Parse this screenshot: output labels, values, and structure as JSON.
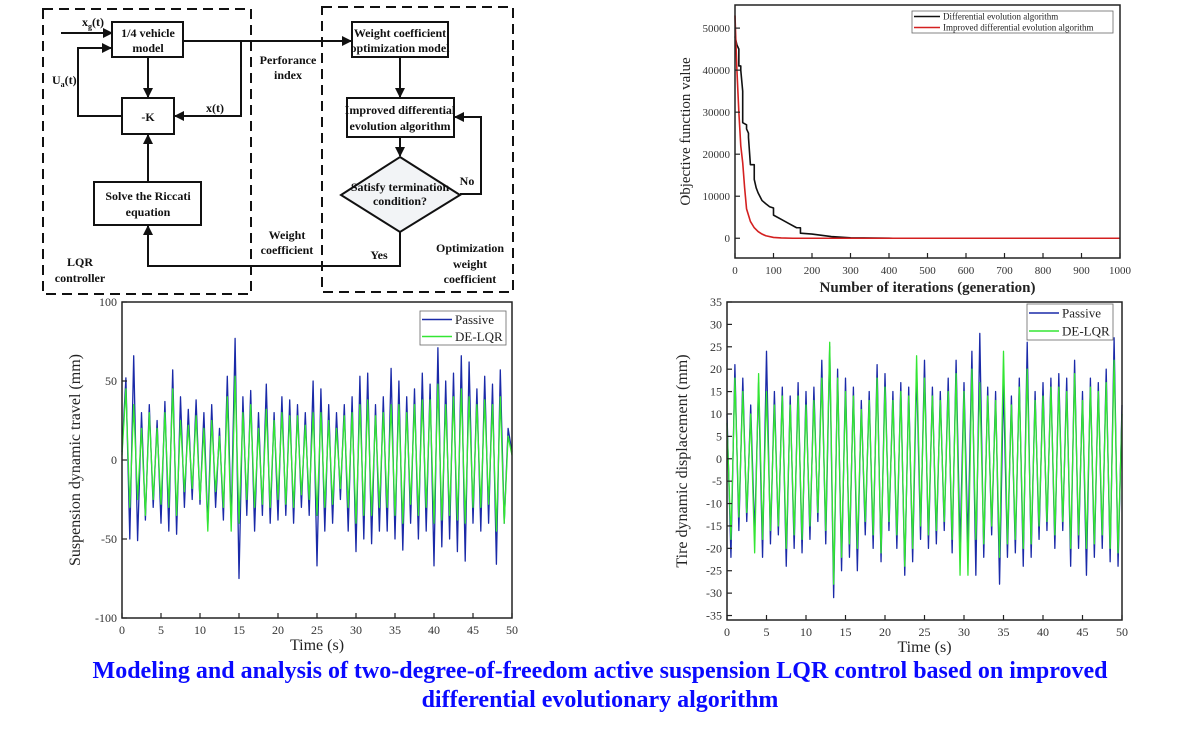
{
  "title": {
    "line1": "Modeling and analysis of two-degree-of-freedom active suspension LQR control based on improved",
    "line2": "differential evolutionary algorithm"
  },
  "diagram": {
    "input_label": {
      "base": "x",
      "sub": "g",
      "suffix": "(t)"
    },
    "control_label": {
      "base": "U",
      "sub": "a",
      "suffix": "(t)"
    },
    "state_label": "x(t)",
    "vehicle_model": [
      "1/4 vehicle",
      "model"
    ],
    "gain": "-K",
    "riccati": [
      "Solve the Riccati",
      "equation"
    ],
    "performance_index": [
      "Perforance",
      "index"
    ],
    "weight_coefficient": [
      "Weight",
      "coefficient"
    ],
    "lqr_controller": [
      "LQR",
      "controller"
    ],
    "optimization_model": [
      "Weight coefficient",
      "optimization model"
    ],
    "improved_de": [
      "Improved differential",
      "evolution algorithm"
    ],
    "decision": [
      "Satisfy termination",
      "condition?"
    ],
    "no_label": "No",
    "yes_label": "Yes",
    "optimization_group": [
      "Optimization",
      "weight",
      "coefficient"
    ]
  },
  "chart_data": [
    {
      "type": "line",
      "title": "",
      "xlabel": "Number of iterations (generation)",
      "ylabel": "Objective function value",
      "xlim": [
        0,
        1000
      ],
      "ylim": [
        -4700,
        55500
      ],
      "xticks": [
        0,
        100,
        200,
        300,
        400,
        500,
        600,
        700,
        800,
        900,
        1000
      ],
      "yticks": [
        0,
        10000,
        20000,
        30000,
        40000,
        50000
      ],
      "grid": false,
      "legend": "top-right",
      "series": [
        {
          "name": "Differential evolution algorithm",
          "color": "#111111",
          "x": [
            0,
            5,
            5,
            10,
            10,
            15,
            15,
            20,
            20,
            30,
            30,
            35,
            35,
            40,
            40,
            50,
            50,
            55,
            60,
            70,
            80,
            90,
            100,
            100,
            120,
            140,
            160,
            170,
            170,
            200,
            250,
            300,
            410
          ],
          "y": [
            48000,
            46000,
            46000,
            45000,
            41000,
            41000,
            40000,
            35000,
            27500,
            27000,
            26000,
            25000,
            24000,
            17500,
            17500,
            17500,
            14000,
            12000,
            10800,
            9000,
            8200,
            7500,
            7200,
            5500,
            4500,
            3500,
            2500,
            2500,
            1200,
            1000,
            400,
            100,
            0
          ]
        },
        {
          "name": "Improved differential evolution algorithm",
          "color": "#d42020",
          "x": [
            0,
            3,
            5,
            10,
            15,
            20,
            25,
            30,
            35,
            40,
            50,
            60,
            70,
            80,
            100,
            120,
            150,
            200,
            400,
            1000
          ],
          "y": [
            53000,
            45000,
            40000,
            30000,
            22000,
            18000,
            12000,
            7000,
            5500,
            4000,
            2500,
            1600,
            1000,
            600,
            200,
            80,
            0,
            0,
            0,
            0
          ]
        }
      ]
    },
    {
      "type": "line",
      "title": "",
      "xlabel": "Time (s)",
      "ylabel": "Suspension dynamic travel (mm)",
      "xlim": [
        0,
        50
      ],
      "ylim": [
        -100,
        100
      ],
      "xticks": [
        0,
        5,
        10,
        15,
        20,
        25,
        30,
        35,
        40,
        45,
        50
      ],
      "yticks": [
        -100,
        -50,
        0,
        50,
        100
      ],
      "grid": false,
      "legend": "top-right",
      "series": [
        {
          "name": "Passive",
          "color": "#1a2aa8",
          "values": [
            5,
            52,
            -50,
            66,
            -51,
            30,
            -38,
            35,
            -30,
            25,
            -40,
            37,
            -45,
            57,
            -47,
            40,
            -30,
            32,
            -25,
            38,
            -28,
            30,
            -42,
            35,
            -30,
            20,
            -38,
            53,
            -40,
            77,
            -75,
            40,
            -35,
            44,
            -45,
            30,
            -35,
            48,
            -40,
            30,
            -38,
            40,
            -35,
            38,
            -40,
            35,
            -30,
            30,
            -35,
            50,
            -67,
            45,
            -45,
            35,
            -40,
            30,
            -25,
            35,
            -45,
            40,
            -58,
            53,
            -50,
            55,
            -53,
            35,
            -45,
            40,
            -45,
            58,
            -50,
            50,
            -57,
            40,
            -40,
            45,
            -50,
            55,
            -45,
            48,
            -67,
            71,
            -55,
            50,
            -50,
            55,
            -58,
            66,
            -64,
            62,
            -40,
            45,
            -45,
            53,
            -40,
            48,
            -66,
            57,
            -40,
            20,
            5
          ]
        },
        {
          "name": "DE-LQR",
          "color": "#33e633",
          "values": [
            3,
            45,
            -30,
            35,
            -25,
            20,
            -35,
            30,
            -25,
            20,
            -28,
            30,
            -30,
            45,
            -35,
            25,
            -20,
            22,
            -18,
            28,
            -25,
            20,
            -45,
            25,
            -20,
            15,
            -30,
            40,
            -45,
            53,
            -40,
            30,
            -25,
            35,
            -30,
            20,
            -28,
            32,
            -30,
            25,
            -25,
            30,
            -28,
            28,
            -30,
            28,
            -22,
            22,
            -25,
            30,
            -35,
            30,
            -30,
            25,
            -28,
            20,
            -18,
            28,
            -30,
            30,
            -40,
            35,
            -35,
            38,
            -35,
            28,
            -30,
            30,
            -30,
            35,
            -35,
            35,
            -40,
            30,
            -28,
            35,
            -35,
            38,
            -30,
            38,
            -40,
            48,
            -38,
            35,
            -35,
            40,
            -38,
            45,
            -40,
            40,
            -30,
            35,
            -30,
            38,
            -28,
            35,
            -45,
            40,
            -40,
            15,
            3
          ]
        }
      ]
    },
    {
      "type": "line",
      "title": "",
      "xlabel": "Time (s)",
      "ylabel": "Tire dynamic displacement (mm)",
      "xlim": [
        0,
        50
      ],
      "ylim": [
        -36,
        35
      ],
      "xticks": [
        0,
        5,
        10,
        15,
        20,
        25,
        30,
        35,
        40,
        45,
        50
      ],
      "yticks": [
        -35,
        -30,
        -25,
        -20,
        -15,
        -10,
        -5,
        0,
        5,
        10,
        15,
        20,
        25,
        30,
        35
      ],
      "grid": false,
      "legend": "top-right",
      "series": [
        {
          "name": "Passive",
          "color": "#1a2aa8",
          "values": [
            10,
            -22,
            21,
            -16,
            18,
            -14,
            12,
            -17,
            17,
            -22,
            24,
            -19,
            15,
            -17,
            16,
            -24,
            14,
            -20,
            17,
            -21,
            15,
            -18,
            16,
            -14,
            22,
            -19,
            25,
            -31,
            20,
            -25,
            18,
            -22,
            16,
            -25,
            13,
            -17,
            15,
            -20,
            21,
            -23,
            19,
            -16,
            15,
            -20,
            17,
            -26,
            16,
            -23,
            20,
            -18,
            22,
            -20,
            16,
            -19,
            15,
            -16,
            18,
            -21,
            22,
            -20,
            17,
            -19,
            24,
            -26,
            28,
            -22,
            16,
            -17,
            15,
            -28,
            17,
            -22,
            14,
            -21,
            18,
            -24,
            26,
            -22,
            15,
            -18,
            17,
            -16,
            18,
            -20,
            19,
            -16,
            18,
            -24,
            22,
            -20,
            15,
            -26,
            18,
            -22,
            17,
            -20,
            20,
            -23,
            27,
            -24,
            12
          ]
        },
        {
          "name": "DE-LQR",
          "color": "#33e633",
          "values": [
            8,
            -18,
            18,
            -13,
            15,
            -12,
            10,
            -21,
            19,
            -18,
            15,
            -16,
            12,
            -15,
            14,
            -20,
            12,
            -17,
            14,
            -18,
            12,
            -15,
            13,
            -12,
            18,
            -16,
            26,
            -28,
            18,
            -22,
            15,
            -19,
            14,
            -20,
            11,
            -14,
            13,
            -17,
            18,
            -21,
            16,
            -14,
            13,
            -17,
            15,
            -24,
            14,
            -20,
            23,
            -15,
            18,
            -17,
            14,
            -16,
            13,
            -14,
            15,
            -18,
            19,
            -26,
            15,
            -26,
            20,
            -18,
            17,
            -19,
            14,
            -15,
            13,
            -22,
            24,
            -19,
            12,
            -18,
            16,
            -20,
            20,
            -19,
            13,
            -15,
            14,
            -14,
            16,
            -17,
            16,
            -14,
            15,
            -20,
            19,
            -17,
            13,
            -20,
            16,
            -19,
            15,
            -17,
            17,
            -20,
            22,
            -21,
            10
          ]
        }
      ]
    }
  ]
}
